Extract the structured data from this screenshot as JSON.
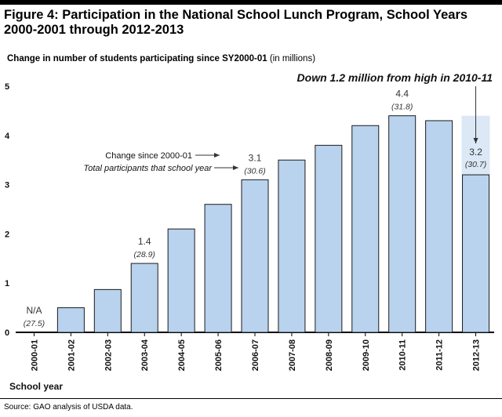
{
  "figure": {
    "title": "Figure 4: Participation in the National School Lunch Program, School Years 2000-2001 through 2012-2013",
    "subtitle": "Change in number of students participating since SY2000-01",
    "subtitle_units": "(in millions)",
    "source": "Source: GAO analysis of USDA data."
  },
  "colors": {
    "bar_fill": "#b9d3ee",
    "bar_stroke": "#1a1a1a",
    "highlight": "#dce8f6",
    "label_gray": "#333333"
  },
  "chart_data": {
    "type": "bar",
    "title": "Figure 4: Participation in the National School Lunch Program, School Years 2000-2001 through 2012-2013",
    "ylabel": "Change in number of students participating since SY2000-01 (in millions)",
    "xlabel": "School year",
    "ylim": [
      0,
      5
    ],
    "yticks": [
      "0",
      "1",
      "2",
      "3",
      "4",
      "5"
    ],
    "categories": [
      "2000-01",
      "2001-02",
      "2002-03",
      "2003-04",
      "2004-05",
      "2005-06",
      "2006-07",
      "2007-08",
      "2008-09",
      "2009-10",
      "2010-11",
      "2011-12",
      "2012-13"
    ],
    "values": [
      0,
      0.5,
      0.87,
      1.4,
      2.1,
      2.6,
      3.1,
      3.5,
      3.8,
      4.2,
      4.4,
      4.3,
      3.2
    ],
    "data_labels": [
      {
        "index": 0,
        "value_text": "N/A",
        "total_text": "(27.5)"
      },
      {
        "index": 3,
        "value_text": "1.4",
        "total_text": "(28.9)"
      },
      {
        "index": 6,
        "value_text": "3.1",
        "total_text": "(30.6)"
      },
      {
        "index": 10,
        "value_text": "4.4",
        "total_text": "(31.8)"
      },
      {
        "index": 12,
        "value_text": "3.2",
        "total_text": "(30.7)"
      }
    ],
    "legend_notes": {
      "change": "Change since 2000-01",
      "total": "Total participants that school year"
    },
    "callout": "Down 1.2 million from high in 2010-11"
  }
}
